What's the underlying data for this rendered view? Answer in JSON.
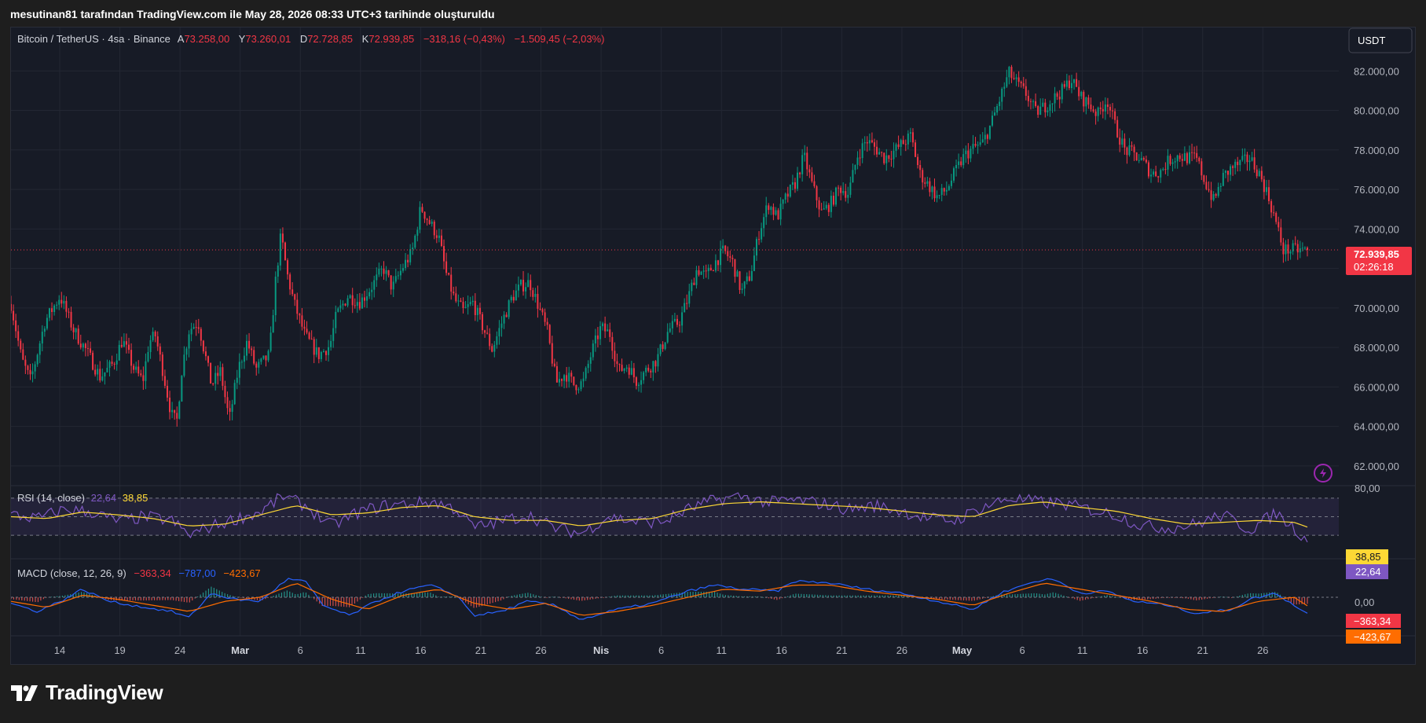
{
  "header": {
    "text": "mesutinan81 tarafından TradingView.com ile May 28, 2026 08:33 UTC+3 tarihinde oluşturuldu"
  },
  "footer": {
    "brand": "TradingView"
  },
  "colors": {
    "up": "#089981",
    "down": "#f23645",
    "rsi": "#7e57c2",
    "rsi_ma": "#fdd835",
    "macd": "#2962ff",
    "signal": "#ff6d00",
    "price_label": "#f23645"
  },
  "legend": {
    "symbol": "Bitcoin / TetherUS · 4sa · Binance",
    "a_label": "A",
    "a_value": "73.258,00",
    "y_label": "Y",
    "y_value": "73.260,01",
    "d_label": "D",
    "d_value": "72.728,85",
    "k_label": "K",
    "k_value": "72.939,85",
    "change": "−318,16 (−0,43%)",
    "change2": "−1.509,45 (−2,03%)"
  },
  "currency_button": "USDT",
  "price_label": {
    "value": "72.939,85",
    "countdown": "02:26:18"
  },
  "rsi_legend": {
    "title": "RSI (14, close)",
    "value": "22,64",
    "ma_value": "38,85"
  },
  "macd_legend": {
    "title": "MACD (close, 12, 26, 9)",
    "hist": "−363,34",
    "macd": "−787,00",
    "signal": "−423,67"
  },
  "rsi_axis": {
    "top": "80,00",
    "ma_label": "38,85",
    "rsi_label": "22,64"
  },
  "macd_axis": {
    "zero": "0,00",
    "hist_label": "−363,34",
    "signal_label": "−423,67"
  },
  "chart_data": {
    "type": "candlestick",
    "price_axis_ticks": [
      "82.000,00",
      "80.000,00",
      "78.000,00",
      "76.000,00",
      "74.000,00",
      "70.000,00",
      "68.000,00",
      "66.000,00",
      "64.000,00",
      "62.000,00"
    ],
    "price_tick_values": [
      82000,
      80000,
      78000,
      76000,
      74000,
      70000,
      68000,
      66000,
      64000,
      62000
    ],
    "ylim": [
      61000,
      84200
    ],
    "x_ticks": [
      "14",
      "19",
      "24",
      "Mar",
      "6",
      "11",
      "16",
      "21",
      "26",
      "Nis",
      "6",
      "11",
      "16",
      "21",
      "26",
      "May",
      "6",
      "11",
      "16",
      "21",
      "26"
    ],
    "x_tick_bold": [
      false,
      false,
      false,
      true,
      false,
      false,
      false,
      false,
      false,
      true,
      false,
      false,
      false,
      false,
      false,
      true,
      false,
      false,
      false,
      false,
      false
    ],
    "current_price": 72939.85,
    "close_path": [
      [
        0,
        70200
      ],
      [
        12,
        67400
      ],
      [
        22,
        66300
      ],
      [
        38,
        69300
      ],
      [
        55,
        70600
      ],
      [
        70,
        68900
      ],
      [
        85,
        67800
      ],
      [
        100,
        66500
      ],
      [
        115,
        67200
      ],
      [
        125,
        68400
      ],
      [
        138,
        66900
      ],
      [
        148,
        66300
      ],
      [
        155,
        68300
      ],
      [
        162,
        68600
      ],
      [
        170,
        66900
      ],
      [
        180,
        64600
      ],
      [
        186,
        64200
      ],
      [
        192,
        67000
      ],
      [
        200,
        68900
      ],
      [
        210,
        69300
      ],
      [
        225,
        66100
      ],
      [
        235,
        66800
      ],
      [
        245,
        64300
      ],
      [
        255,
        66900
      ],
      [
        265,
        68300
      ],
      [
        275,
        66900
      ],
      [
        290,
        67600
      ],
      [
        297,
        71400
      ],
      [
        303,
        73700
      ],
      [
        310,
        71700
      ],
      [
        318,
        70200
      ],
      [
        330,
        68600
      ],
      [
        345,
        67600
      ],
      [
        358,
        68100
      ],
      [
        365,
        69600
      ],
      [
        378,
        70600
      ],
      [
        392,
        70300
      ],
      [
        405,
        71100
      ],
      [
        418,
        72000
      ],
      [
        428,
        71000
      ],
      [
        440,
        72100
      ],
      [
        450,
        72800
      ],
      [
        460,
        75100
      ],
      [
        470,
        74300
      ],
      [
        480,
        73600
      ],
      [
        488,
        71800
      ],
      [
        498,
        70400
      ],
      [
        508,
        69800
      ],
      [
        518,
        70300
      ],
      [
        528,
        69200
      ],
      [
        540,
        67900
      ],
      [
        552,
        69400
      ],
      [
        562,
        70500
      ],
      [
        572,
        71100
      ],
      [
        582,
        71300
      ],
      [
        592,
        70100
      ],
      [
        602,
        68800
      ],
      [
        612,
        66200
      ],
      [
        622,
        66700
      ],
      [
        632,
        66100
      ],
      [
        642,
        66200
      ],
      [
        652,
        67800
      ],
      [
        662,
        69000
      ],
      [
        672,
        68700
      ],
      [
        682,
        66800
      ],
      [
        692,
        67100
      ],
      [
        702,
        66300
      ],
      [
        712,
        66800
      ],
      [
        725,
        67400
      ],
      [
        738,
        68900
      ],
      [
        750,
        69300
      ],
      [
        760,
        70500
      ],
      [
        770,
        72000
      ],
      [
        780,
        71600
      ],
      [
        790,
        72300
      ],
      [
        800,
        72900
      ],
      [
        810,
        72300
      ],
      [
        820,
        70800
      ],
      [
        830,
        71700
      ],
      [
        840,
        73900
      ],
      [
        850,
        75300
      ],
      [
        860,
        74600
      ],
      [
        870,
        75600
      ],
      [
        880,
        76300
      ],
      [
        890,
        77700
      ],
      [
        900,
        76100
      ],
      [
        910,
        74800
      ],
      [
        920,
        75300
      ],
      [
        930,
        76100
      ],
      [
        940,
        75800
      ],
      [
        950,
        77700
      ],
      [
        960,
        78500
      ],
      [
        970,
        78100
      ],
      [
        980,
        77600
      ],
      [
        990,
        77900
      ],
      [
        1000,
        78300
      ],
      [
        1010,
        78700
      ],
      [
        1020,
        76800
      ],
      [
        1030,
        76200
      ],
      [
        1040,
        75600
      ],
      [
        1050,
        76000
      ],
      [
        1060,
        76900
      ],
      [
        1070,
        77700
      ],
      [
        1080,
        78100
      ],
      [
        1090,
        78300
      ],
      [
        1100,
        79300
      ],
      [
        1110,
        80600
      ],
      [
        1120,
        81900
      ],
      [
        1130,
        81300
      ],
      [
        1140,
        80800
      ],
      [
        1150,
        79900
      ],
      [
        1160,
        80200
      ],
      [
        1170,
        80600
      ],
      [
        1180,
        81000
      ],
      [
        1190,
        81600
      ],
      [
        1200,
        80700
      ],
      [
        1210,
        80300
      ],
      [
        1220,
        79800
      ],
      [
        1230,
        80600
      ],
      [
        1240,
        79100
      ],
      [
        1250,
        78000
      ],
      [
        1260,
        77800
      ],
      [
        1270,
        77400
      ],
      [
        1280,
        76800
      ],
      [
        1290,
        76900
      ],
      [
        1300,
        77500
      ],
      [
        1310,
        77700
      ],
      [
        1320,
        77600
      ],
      [
        1330,
        77600
      ],
      [
        1340,
        76400
      ],
      [
        1350,
        75400
      ],
      [
        1360,
        76600
      ],
      [
        1370,
        77100
      ],
      [
        1380,
        77300
      ],
      [
        1390,
        77600
      ],
      [
        1400,
        76900
      ],
      [
        1410,
        75800
      ],
      [
        1418,
        74600
      ],
      [
        1428,
        72940
      ]
    ],
    "rsi_range": [
      0,
      100
    ],
    "rsi_levels": [
      70,
      50,
      30
    ],
    "rsi_path": [
      [
        0,
        52
      ],
      [
        30,
        48
      ],
      [
        60,
        58
      ],
      [
        90,
        55
      ],
      [
        120,
        45
      ],
      [
        150,
        50
      ],
      [
        180,
        46
      ],
      [
        200,
        30
      ],
      [
        220,
        38
      ],
      [
        250,
        47
      ],
      [
        280,
        55
      ],
      [
        305,
        72
      ],
      [
        330,
        62
      ],
      [
        360,
        40
      ],
      [
        390,
        55
      ],
      [
        420,
        62
      ],
      [
        450,
        64
      ],
      [
        475,
        66
      ],
      [
        500,
        58
      ],
      [
        520,
        38
      ],
      [
        550,
        45
      ],
      [
        580,
        52
      ],
      [
        610,
        38
      ],
      [
        640,
        32
      ],
      [
        670,
        50
      ],
      [
        700,
        45
      ],
      [
        730,
        44
      ],
      [
        760,
        58
      ],
      [
        790,
        68
      ],
      [
        820,
        72
      ],
      [
        850,
        65
      ],
      [
        880,
        68
      ],
      [
        910,
        64
      ],
      [
        940,
        58
      ],
      [
        970,
        62
      ],
      [
        1000,
        56
      ],
      [
        1030,
        48
      ],
      [
        1060,
        46
      ],
      [
        1090,
        60
      ],
      [
        1120,
        70
      ],
      [
        1150,
        66
      ],
      [
        1180,
        64
      ],
      [
        1210,
        58
      ],
      [
        1240,
        52
      ],
      [
        1270,
        40
      ],
      [
        1300,
        38
      ],
      [
        1330,
        42
      ],
      [
        1360,
        52
      ],
      [
        1390,
        36
      ],
      [
        1420,
        54
      ],
      [
        1445,
        34
      ],
      [
        1455,
        22.64
      ]
    ],
    "rsi_ma_path": [
      [
        0,
        50
      ],
      [
        40,
        48
      ],
      [
        80,
        55
      ],
      [
        120,
        52
      ],
      [
        160,
        48
      ],
      [
        200,
        40
      ],
      [
        240,
        42
      ],
      [
        280,
        52
      ],
      [
        320,
        62
      ],
      [
        360,
        52
      ],
      [
        400,
        54
      ],
      [
        440,
        60
      ],
      [
        480,
        62
      ],
      [
        520,
        50
      ],
      [
        560,
        46
      ],
      [
        600,
        46
      ],
      [
        640,
        40
      ],
      [
        680,
        46
      ],
      [
        720,
        48
      ],
      [
        760,
        58
      ],
      [
        800,
        64
      ],
      [
        840,
        66
      ],
      [
        880,
        64
      ],
      [
        920,
        62
      ],
      [
        960,
        60
      ],
      [
        1000,
        56
      ],
      [
        1040,
        52
      ],
      [
        1080,
        50
      ],
      [
        1120,
        62
      ],
      [
        1160,
        66
      ],
      [
        1200,
        60
      ],
      [
        1240,
        56
      ],
      [
        1280,
        48
      ],
      [
        1320,
        42
      ],
      [
        1360,
        44
      ],
      [
        1400,
        46
      ],
      [
        1440,
        44
      ],
      [
        1455,
        38.85
      ]
    ],
    "macd_range": [
      -1900,
      1900
    ],
    "macd_path": [
      [
        0,
        -300
      ],
      [
        30,
        -700
      ],
      [
        60,
        -100
      ],
      [
        80,
        400
      ],
      [
        110,
        -200
      ],
      [
        150,
        -500
      ],
      [
        180,
        -700
      ],
      [
        200,
        -1000
      ],
      [
        225,
        200
      ],
      [
        250,
        -100
      ],
      [
        280,
        -200
      ],
      [
        310,
        900
      ],
      [
        330,
        800
      ],
      [
        350,
        -400
      ],
      [
        380,
        -900
      ],
      [
        410,
        -200
      ],
      [
        440,
        300
      ],
      [
        470,
        600
      ],
      [
        500,
        100
      ],
      [
        520,
        -900
      ],
      [
        550,
        -700
      ],
      [
        580,
        -200
      ],
      [
        610,
        -400
      ],
      [
        640,
        -1100
      ],
      [
        680,
        -600
      ],
      [
        720,
        -300
      ],
      [
        760,
        300
      ],
      [
        790,
        600
      ],
      [
        820,
        400
      ],
      [
        860,
        300
      ],
      [
        880,
        800
      ],
      [
        920,
        700
      ],
      [
        960,
        400
      ],
      [
        1000,
        200
      ],
      [
        1040,
        -200
      ],
      [
        1080,
        -600
      ],
      [
        1110,
        200
      ],
      [
        1150,
        800
      ],
      [
        1170,
        900
      ],
      [
        1200,
        200
      ],
      [
        1230,
        300
      ],
      [
        1260,
        -200
      ],
      [
        1300,
        -400
      ],
      [
        1330,
        -800
      ],
      [
        1370,
        -600
      ],
      [
        1390,
        -100
      ],
      [
        1420,
        200
      ],
      [
        1440,
        -400
      ],
      [
        1455,
        -787
      ]
    ],
    "signal_path": [
      [
        0,
        -200
      ],
      [
        40,
        -500
      ],
      [
        80,
        100
      ],
      [
        120,
        -100
      ],
      [
        160,
        -400
      ],
      [
        200,
        -700
      ],
      [
        240,
        -200
      ],
      [
        280,
        0
      ],
      [
        320,
        700
      ],
      [
        360,
        -100
      ],
      [
        400,
        -600
      ],
      [
        440,
        100
      ],
      [
        480,
        400
      ],
      [
        520,
        -300
      ],
      [
        560,
        -600
      ],
      [
        600,
        -300
      ],
      [
        640,
        -900
      ],
      [
        680,
        -700
      ],
      [
        720,
        -400
      ],
      [
        760,
        0
      ],
      [
        800,
        400
      ],
      [
        840,
        300
      ],
      [
        880,
        600
      ],
      [
        920,
        600
      ],
      [
        960,
        300
      ],
      [
        1000,
        100
      ],
      [
        1040,
        -100
      ],
      [
        1080,
        -400
      ],
      [
        1120,
        200
      ],
      [
        1160,
        700
      ],
      [
        1200,
        400
      ],
      [
        1240,
        100
      ],
      [
        1280,
        -200
      ],
      [
        1320,
        -600
      ],
      [
        1360,
        -700
      ],
      [
        1400,
        -200
      ],
      [
        1440,
        0
      ],
      [
        1455,
        -423.67
      ]
    ]
  }
}
